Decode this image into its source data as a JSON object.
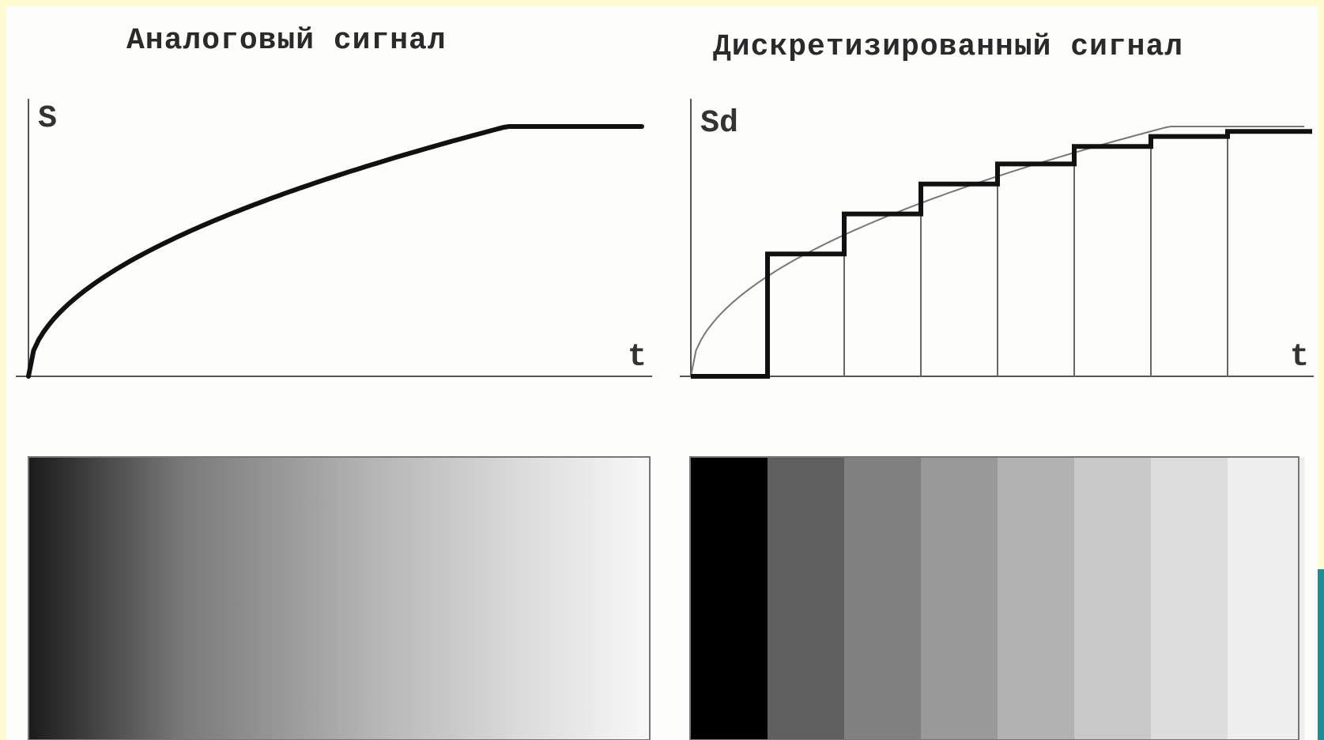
{
  "panels": {
    "analog": {
      "title": "Аналоговый сигнал",
      "y_axis_label": "S",
      "x_axis_label": "t"
    },
    "discrete": {
      "title": "Дискретизированный сигнал",
      "y_axis_label": "Sd",
      "x_axis_label": "t"
    }
  },
  "discrete_steps": {
    "count": 8,
    "levels": [
      0.0,
      0.49,
      0.65,
      0.77,
      0.85,
      0.92,
      0.96,
      0.98
    ],
    "bar_grays": [
      "#000000",
      "#5f5f5f",
      "#808080",
      "#999999",
      "#b2b2b2",
      "#c8c8c8",
      "#dcdcdc",
      "#eeeeee"
    ]
  },
  "colors": {
    "background": "#fffbd0",
    "curve": "#111111",
    "axis": "#555555",
    "teal_accent": "#1b8e9a"
  }
}
